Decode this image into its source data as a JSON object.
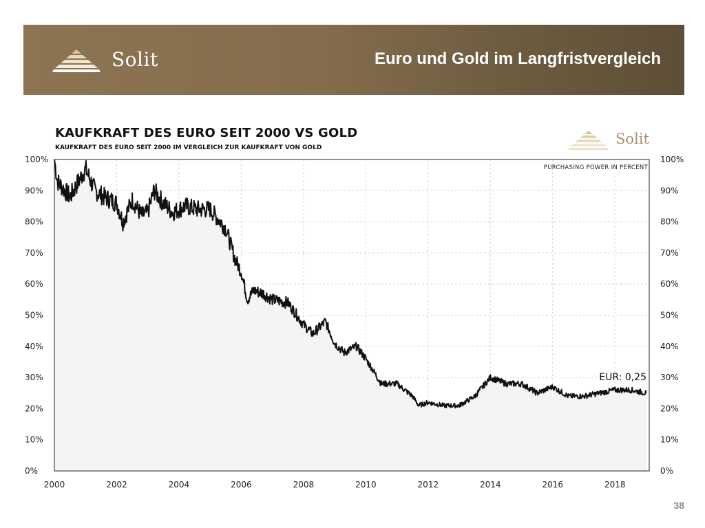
{
  "slide": {
    "brand": "Solit",
    "title": "Euro und Gold im Langfristvergleich",
    "page_number": "38"
  },
  "chart_header": {
    "title": "KAUFKRAFT DES EURO SEIT 2000 VS GOLD",
    "subtitle": "KAUFKRAFT DES EURO SEIT 2000 IM VERGLEICH ZUR KAUFKRAFT VON GOLD",
    "brand": "Solit"
  },
  "colors": {
    "banner": "#846d4d",
    "line": "#111111",
    "area": "#f4f4f4",
    "grid": "#d6d6d6",
    "logo": "#c8b48e"
  },
  "chart_data": {
    "type": "area",
    "title": "KAUFKRAFT DES EURO SEIT 2000 VS GOLD",
    "subtitle": "KAUFKRAFT DES EURO SEIT 2000 IM VERGLEICH ZUR KAUFKRAFT VON GOLD",
    "annotation": "PURCHASING POWER IN PERCENT",
    "end_label": "EUR: 0,25",
    "x_ticks": [
      "2000",
      "2002",
      "2004",
      "2006",
      "2008",
      "2010",
      "2012",
      "2014",
      "2016",
      "2018"
    ],
    "y_ticks": [
      "0%",
      "10%",
      "20%",
      "30%",
      "40%",
      "50%",
      "60%",
      "70%",
      "80%",
      "90%",
      "100%"
    ],
    "xlim": [
      2000,
      2019.1
    ],
    "ylim": [
      0,
      100
    ],
    "grid": true,
    "series": [
      {
        "x": [
          2000.0,
          2000.1,
          2000.5,
          2001.0,
          2001.3,
          2001.6,
          2002.0,
          2002.2,
          2002.5,
          2002.8,
          2003.0,
          2003.2,
          2003.5,
          2003.8,
          2004.2,
          2004.6,
          2005.0,
          2005.5,
          2005.8,
          2006.0,
          2006.2,
          2006.4,
          2006.7,
          2007.0,
          2007.5,
          2008.0,
          2008.3,
          2008.7,
          2009.0,
          2009.3,
          2009.7,
          2010.0,
          2010.5,
          2011.0,
          2011.5,
          2011.7,
          2012.0,
          2012.5,
          2013.0,
          2013.5,
          2014.0,
          2014.5,
          2015.0,
          2015.5,
          2016.0,
          2016.5,
          2017.0,
          2017.5,
          2018.0,
          2018.5,
          2019.0
        ],
        "values": [
          100,
          93,
          88,
          97,
          90,
          88,
          86,
          80,
          87,
          82,
          83,
          90,
          86,
          83,
          85,
          84,
          84,
          78,
          68,
          64,
          55,
          58,
          57,
          55,
          54,
          47,
          44,
          48,
          41,
          38,
          40,
          36,
          28,
          28,
          24,
          21,
          22,
          21,
          21,
          24,
          30,
          28,
          28,
          25,
          27,
          24,
          24,
          25,
          26,
          26,
          25
        ]
      }
    ]
  }
}
